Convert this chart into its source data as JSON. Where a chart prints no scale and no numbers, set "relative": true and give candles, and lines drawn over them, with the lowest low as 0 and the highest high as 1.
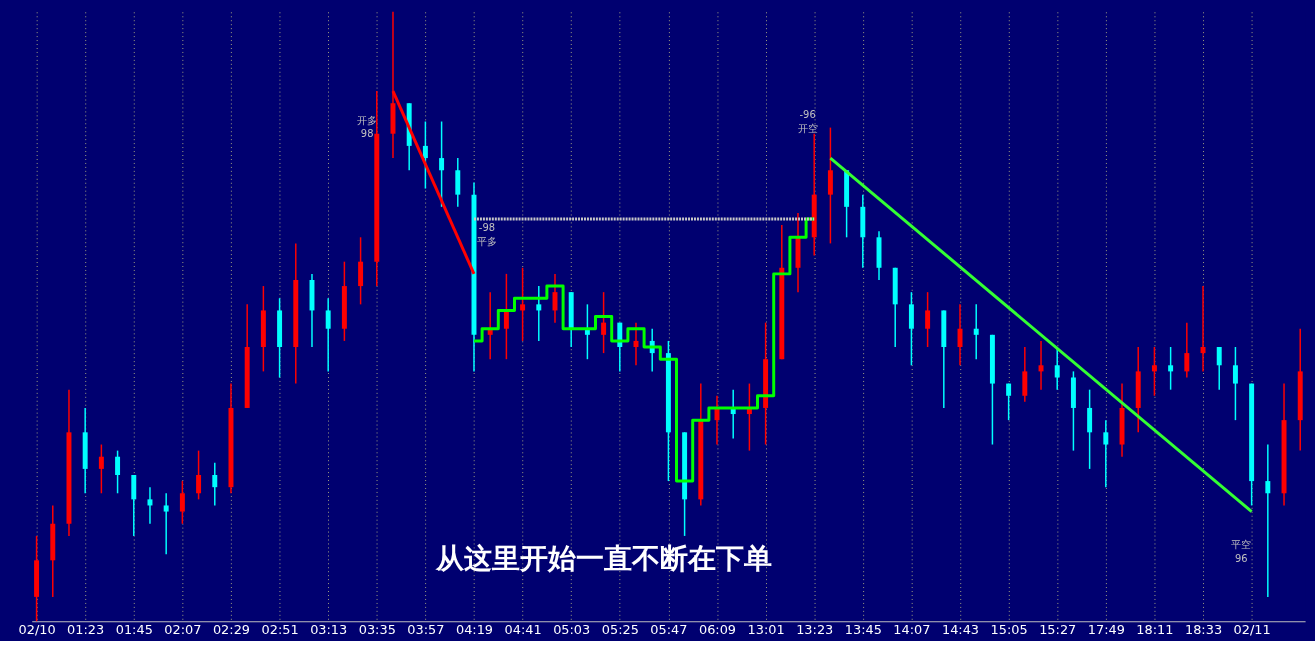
{
  "chart_data": {
    "type": "candlestick",
    "relative": true,
    "grid": "x",
    "tick_labels": "x",
    "categories": [
      "02/10",
      null,
      null,
      "01:23",
      null,
      null,
      "01:45",
      null,
      null,
      "02:07",
      null,
      null,
      "02:29",
      null,
      null,
      "02:51",
      null,
      null,
      "03:13",
      null,
      null,
      "03:35",
      null,
      null,
      "03:57",
      null,
      null,
      "04:19",
      null,
      null,
      "04:41",
      null,
      null,
      "05:03",
      null,
      null,
      "05:25",
      null,
      null,
      "05:47",
      null,
      null,
      "06:09",
      null,
      null,
      "13:01",
      null,
      null,
      "13:23",
      null,
      null,
      "13:45",
      null,
      null,
      "14:07",
      null,
      null,
      "14:43",
      null,
      null,
      "15:05",
      null,
      null,
      "15:27",
      null,
      null,
      "17:49",
      null,
      null,
      "18:11",
      null,
      null,
      "18:33",
      null,
      null,
      "02/11",
      null,
      null,
      null
    ],
    "ohlc": [
      [
        0.04,
        0.14,
        0,
        0.1
      ],
      [
        0.1,
        0.19,
        0.04,
        0.16
      ],
      [
        0.16,
        0.38,
        0.14,
        0.31
      ],
      [
        0.31,
        0.35,
        0.21,
        0.25
      ],
      [
        0.25,
        0.29,
        0.21,
        0.27
      ],
      [
        0.27,
        0.28,
        0.21,
        0.24
      ],
      [
        0.24,
        0.24,
        0.14,
        0.2
      ],
      [
        0.2,
        0.22,
        0.16,
        0.19
      ],
      [
        0.19,
        0.21,
        0.11,
        0.18
      ],
      [
        0.18,
        0.23,
        0.16,
        0.21
      ],
      [
        0.21,
        0.28,
        0.2,
        0.24
      ],
      [
        0.24,
        0.26,
        0.19,
        0.22
      ],
      [
        0.22,
        0.39,
        0.21,
        0.35
      ],
      [
        0.35,
        0.52,
        0.35,
        0.45
      ],
      [
        0.45,
        0.55,
        0.41,
        0.51
      ],
      [
        0.51,
        0.53,
        0.4,
        0.45
      ],
      [
        0.45,
        0.62,
        0.39,
        0.56
      ],
      [
        0.56,
        0.57,
        0.45,
        0.51
      ],
      [
        0.51,
        0.53,
        0.41,
        0.48
      ],
      [
        0.48,
        0.59,
        0.46,
        0.55
      ],
      [
        0.55,
        0.63,
        0.52,
        0.59
      ],
      [
        0.59,
        0.87,
        0.55,
        0.8
      ],
      [
        0.8,
        1.0,
        0.76,
        0.85
      ],
      [
        0.85,
        0.85,
        0.74,
        0.78
      ],
      [
        0.78,
        0.82,
        0.71,
        0.76
      ],
      [
        0.76,
        0.82,
        0.68,
        0.74
      ],
      [
        0.74,
        0.76,
        0.68,
        0.7
      ],
      [
        0.7,
        0.72,
        0.41,
        0.47
      ],
      [
        0.47,
        0.54,
        0.43,
        0.48
      ],
      [
        0.48,
        0.57,
        0.43,
        0.51
      ],
      [
        0.51,
        0.58,
        0.46,
        0.52
      ],
      [
        0.52,
        0.55,
        0.46,
        0.51
      ],
      [
        0.51,
        0.57,
        0.49,
        0.54
      ],
      [
        0.54,
        0.54,
        0.45,
        0.48
      ],
      [
        0.48,
        0.52,
        0.43,
        0.47
      ],
      [
        0.47,
        0.54,
        0.44,
        0.49
      ],
      [
        0.49,
        0.49,
        0.41,
        0.45
      ],
      [
        0.45,
        0.49,
        0.42,
        0.46
      ],
      [
        0.46,
        0.48,
        0.41,
        0.44
      ],
      [
        0.44,
        0.46,
        0.23,
        0.31
      ],
      [
        0.31,
        0.31,
        0.14,
        0.2
      ],
      [
        0.2,
        0.39,
        0.19,
        0.33
      ],
      [
        0.33,
        0.37,
        0.29,
        0.35
      ],
      [
        0.35,
        0.38,
        0.3,
        0.34
      ],
      [
        0.34,
        0.39,
        0.28,
        0.35
      ],
      [
        0.35,
        0.49,
        0.29,
        0.43
      ],
      [
        0.43,
        0.65,
        0.43,
        0.58
      ],
      [
        0.58,
        0.67,
        0.54,
        0.63
      ],
      [
        0.63,
        0.8,
        0.6,
        0.7
      ],
      [
        0.7,
        0.81,
        0.62,
        0.74
      ],
      [
        0.74,
        0.74,
        0.63,
        0.68
      ],
      [
        0.68,
        0.7,
        0.58,
        0.63
      ],
      [
        0.63,
        0.64,
        0.56,
        0.58
      ],
      [
        0.58,
        0.58,
        0.45,
        0.52
      ],
      [
        0.52,
        0.54,
        0.42,
        0.48
      ],
      [
        0.48,
        0.54,
        0.45,
        0.51
      ],
      [
        0.51,
        0.51,
        0.35,
        0.45
      ],
      [
        0.45,
        0.52,
        0.42,
        0.48
      ],
      [
        0.48,
        0.52,
        0.43,
        0.47
      ],
      [
        0.47,
        0.47,
        0.29,
        0.39
      ],
      [
        0.39,
        0.39,
        0.33,
        0.37
      ],
      [
        0.37,
        0.45,
        0.36,
        0.41
      ],
      [
        0.41,
        0.46,
        0.38,
        0.42
      ],
      [
        0.42,
        0.45,
        0.38,
        0.4
      ],
      [
        0.4,
        0.41,
        0.28,
        0.35
      ],
      [
        0.35,
        0.38,
        0.25,
        0.31
      ],
      [
        0.31,
        0.33,
        0.22,
        0.29
      ],
      [
        0.29,
        0.39,
        0.27,
        0.35
      ],
      [
        0.35,
        0.45,
        0.31,
        0.41
      ],
      [
        0.41,
        0.45,
        0.37,
        0.42
      ],
      [
        0.42,
        0.45,
        0.38,
        0.41
      ],
      [
        0.41,
        0.49,
        0.4,
        0.44
      ],
      [
        0.44,
        0.55,
        0.41,
        0.45
      ],
      [
        0.45,
        0.45,
        0.38,
        0.42
      ],
      [
        0.42,
        0.45,
        0.33,
        0.39
      ],
      [
        0.39,
        0.39,
        0.19,
        0.23
      ],
      [
        0.23,
        0.29,
        0.04,
        0.21
      ],
      [
        0.21,
        0.39,
        0.19,
        0.33
      ],
      [
        0.33,
        0.48,
        0.28,
        0.41
      ]
    ],
    "colors": [
      "#ff0000",
      "#ff0000",
      "#ff0000",
      "#00ffff",
      "#ff0000",
      "#00ffff",
      "#00ffff",
      "#00ffff",
      "#00ffff",
      "#ff0000",
      "#ff0000",
      "#00ffff",
      "#ff0000",
      "#ff0000",
      "#ff0000",
      "#00ffff",
      "#ff0000",
      "#00ffff",
      "#00ffff",
      "#ff0000",
      "#ff0000",
      "#ff0000",
      "#ff0000",
      "#00ffff",
      "#00ffff",
      "#00ffff",
      "#00ffff",
      "#00ffff",
      "#ff0000",
      "#ff0000",
      "#ff0000",
      "#00ffff",
      "#ff0000",
      "#00ffff",
      "#00ffff",
      "#ff0000",
      "#00ffff",
      "#ff0000",
      "#00ffff",
      "#00ffff",
      "#00ffff",
      "#ff0000",
      "#ff0000",
      "#00ffff",
      "#ff0000",
      "#ff0000",
      "#ff0000",
      "#ff0000",
      "#ff0000",
      "#ff0000",
      "#00ffff",
      "#00ffff",
      "#00ffff",
      "#00ffff",
      "#00ffff",
      "#ff0000",
      "#00ffff",
      "#ff0000",
      "#00ffff",
      "#00ffff",
      "#00ffff",
      "#ff0000",
      "#ff0000",
      "#00ffff",
      "#00ffff",
      "#00ffff",
      "#00ffff",
      "#ff0000",
      "#ff0000",
      "#ff0000",
      "#00ffff",
      "#ff0000",
      "#ff0000",
      "#00ffff",
      "#00ffff",
      "#00ffff",
      "#00ffff",
      "#ff0000",
      "#ff0000"
    ],
    "series": [
      {
        "type": "line",
        "color": "#c8c8c8",
        "line_style": "dotted",
        "values": [
          null,
          null,
          null,
          null,
          null,
          null,
          null,
          null,
          null,
          null,
          null,
          null,
          null,
          null,
          null,
          null,
          null,
          null,
          null,
          null,
          null,
          null,
          null,
          null,
          null,
          null,
          null,
          0.66,
          null,
          null,
          null,
          null,
          null,
          null,
          null,
          null,
          null,
          null,
          null,
          null,
          null,
          null,
          null,
          null,
          null,
          null,
          null,
          null,
          0.66,
          null,
          null,
          null,
          null,
          null,
          null,
          null,
          null,
          null,
          null,
          null,
          null,
          null,
          null,
          null,
          null,
          null,
          null,
          null,
          null,
          null,
          null,
          null,
          null,
          null,
          null,
          null,
          null,
          null,
          null
        ]
      },
      {
        "type": "step",
        "color": "#00ff00",
        "line_style": "solid",
        "values": [
          null,
          null,
          null,
          null,
          null,
          null,
          null,
          null,
          null,
          null,
          null,
          null,
          null,
          null,
          null,
          null,
          null,
          null,
          null,
          null,
          null,
          null,
          null,
          null,
          null,
          null,
          null,
          0.46,
          0.48,
          0.51,
          0.53,
          0.53,
          0.55,
          0.48,
          0.48,
          0.5,
          0.46,
          0.48,
          0.45,
          0.43,
          0.23,
          0.33,
          0.35,
          0.35,
          0.35,
          0.37,
          0.57,
          0.63,
          0.66,
          null,
          null,
          null,
          null,
          null,
          null,
          null,
          null,
          null,
          null,
          null,
          null,
          null,
          null,
          null,
          null,
          null,
          null,
          null,
          null,
          null,
          null,
          null,
          null,
          null,
          null,
          null,
          null,
          null,
          null
        ]
      },
      {
        "type": "line",
        "color": "#ff0000",
        "line_style": "solid",
        "values": [
          null,
          null,
          null,
          null,
          null,
          null,
          null,
          null,
          null,
          null,
          null,
          null,
          null,
          null,
          null,
          null,
          null,
          null,
          null,
          null,
          null,
          null,
          0.87,
          null,
          null,
          null,
          null,
          0.57,
          null,
          null,
          null,
          null,
          null,
          null,
          null,
          null,
          null,
          null,
          null,
          null,
          null,
          null,
          null,
          null,
          null,
          null,
          null,
          null,
          null,
          null,
          null,
          null,
          null,
          null,
          null,
          null,
          null,
          null,
          null,
          null,
          null,
          null,
          null,
          null,
          null,
          null,
          null,
          null,
          null,
          null,
          null,
          null,
          null,
          null,
          null,
          null,
          null,
          null,
          null
        ]
      },
      {
        "type": "line",
        "color": "#33ff33",
        "line_style": "solid",
        "values": [
          null,
          null,
          null,
          null,
          null,
          null,
          null,
          null,
          null,
          null,
          null,
          null,
          null,
          null,
          null,
          null,
          null,
          null,
          null,
          null,
          null,
          null,
          null,
          null,
          null,
          null,
          null,
          null,
          null,
          null,
          null,
          null,
          null,
          null,
          null,
          null,
          null,
          null,
          null,
          null,
          null,
          null,
          null,
          null,
          null,
          null,
          null,
          null,
          null,
          0.76,
          null,
          null,
          null,
          null,
          null,
          null,
          null,
          null,
          null,
          null,
          null,
          null,
          null,
          null,
          null,
          null,
          null,
          null,
          null,
          null,
          null,
          null,
          null,
          null,
          null,
          0.18,
          null,
          null,
          null
        ]
      }
    ],
    "annotations": [
      "开多",
      "98",
      "-98",
      "平多",
      "-96",
      "开空",
      "平空",
      "96",
      "从这里开始一直不断在下单"
    ]
  }
}
